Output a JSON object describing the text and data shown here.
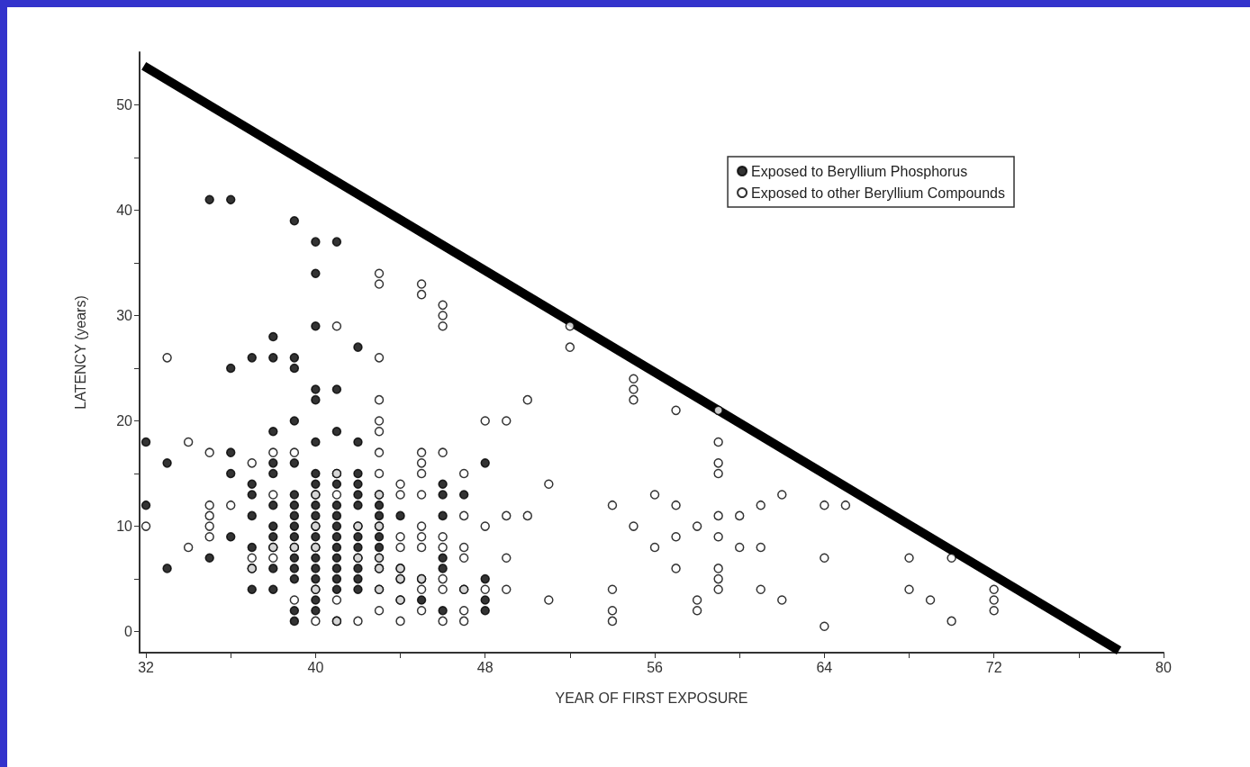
{
  "chart_data": {
    "type": "scatter",
    "xlabel": "YEAR OF FIRST EXPOSURE",
    "ylabel": "LATENCY (years)",
    "xlim": [
      31.7,
      80
    ],
    "ylim": [
      -2,
      55
    ],
    "xticks": [
      32,
      {
        "value": 36,
        "label": null
      },
      40,
      {
        "value": 44,
        "label": null
      },
      48,
      {
        "value": 52,
        "label": null
      },
      56,
      {
        "value": 60,
        "label": null
      },
      64,
      {
        "value": 68,
        "label": null
      },
      72,
      {
        "value": 76,
        "label": null
      },
      80
    ],
    "yticks": [
      0,
      {
        "value": 5,
        "label": null
      },
      10,
      {
        "value": 15,
        "label": null
      },
      20,
      {
        "value": 25,
        "label": null
      },
      30,
      {
        "value": 35,
        "label": null
      },
      40,
      {
        "value": 45,
        "label": null
      },
      50
    ],
    "grid": false,
    "legend": "top right",
    "marker": "circle",
    "series": [
      {
        "name": "Exposed to Beryllium Phosphorus",
        "color": "#000000",
        "x": [
          32,
          32,
          33,
          33,
          35,
          35,
          36,
          36,
          36,
          36,
          36,
          37,
          37,
          37,
          37,
          37,
          37,
          37,
          38,
          38,
          38,
          38,
          38,
          38,
          38,
          38,
          38,
          38,
          38,
          39,
          39,
          39,
          39,
          39,
          39,
          39,
          39,
          39,
          39,
          39,
          39,
          39,
          39,
          39,
          39,
          40,
          40,
          40,
          40,
          40,
          40,
          40,
          40,
          40,
          40,
          40,
          40,
          40,
          40,
          40,
          40,
          40,
          40,
          40,
          40,
          41,
          41,
          41,
          41,
          41,
          41,
          41,
          41,
          41,
          41,
          41,
          41,
          41,
          41,
          41,
          42,
          42,
          42,
          42,
          42,
          42,
          42,
          42,
          42,
          42,
          42,
          42,
          42,
          43,
          43,
          43,
          43,
          43,
          43,
          43,
          43,
          43,
          44,
          44,
          44,
          44,
          45,
          45,
          46,
          46,
          46,
          46,
          46,
          46,
          47,
          47,
          48,
          48,
          48,
          48
        ],
        "values": [
          18,
          12,
          16,
          6,
          41,
          7,
          41,
          25,
          17,
          15,
          9,
          26,
          14,
          13,
          11,
          8,
          6,
          4,
          28,
          26,
          19,
          16,
          15,
          12,
          10,
          9,
          8,
          6,
          4,
          39,
          26,
          25,
          20,
          16,
          13,
          12,
          11,
          10,
          9,
          8,
          7,
          6,
          5,
          2,
          1,
          37,
          34,
          29,
          23,
          22,
          18,
          15,
          14,
          13,
          12,
          11,
          10,
          9,
          8,
          7,
          6,
          5,
          4,
          3,
          2,
          37,
          23,
          19,
          15,
          14,
          12,
          11,
          10,
          9,
          8,
          7,
          6,
          5,
          4,
          1,
          27,
          18,
          15,
          14,
          13,
          12,
          10,
          9,
          8,
          7,
          6,
          5,
          4,
          13,
          12,
          11,
          10,
          9,
          8,
          7,
          6,
          4,
          11,
          6,
          5,
          3,
          5,
          3,
          14,
          13,
          11,
          7,
          6,
          2,
          13,
          4,
          16,
          5,
          3,
          2
        ]
      },
      {
        "name": "Exposed to other Beryllium Compounds",
        "color": "#ffffff",
        "x": [
          32,
          33,
          34,
          34,
          35,
          35,
          35,
          35,
          35,
          36,
          37,
          37,
          37,
          38,
          38,
          38,
          38,
          39,
          39,
          39,
          40,
          40,
          40,
          40,
          40,
          41,
          41,
          41,
          41,
          41,
          42,
          42,
          42,
          43,
          43,
          43,
          43,
          43,
          43,
          43,
          43,
          43,
          43,
          43,
          43,
          43,
          43,
          44,
          44,
          44,
          44,
          44,
          44,
          44,
          44,
          45,
          45,
          45,
          45,
          45,
          45,
          45,
          45,
          45,
          45,
          45,
          45,
          46,
          46,
          46,
          46,
          46,
          46,
          46,
          46,
          46,
          47,
          47,
          47,
          47,
          47,
          47,
          47,
          48,
          48,
          48,
          49,
          49,
          49,
          49,
          50,
          50,
          51,
          51,
          52,
          52,
          54,
          54,
          54,
          54,
          55,
          55,
          55,
          55,
          56,
          56,
          57,
          57,
          57,
          57,
          58,
          58,
          58,
          59,
          59,
          59,
          59,
          59,
          59,
          59,
          59,
          59,
          60,
          60,
          61,
          61,
          61,
          62,
          62,
          64,
          64,
          64,
          65,
          68,
          68,
          69,
          70,
          70,
          72,
          72,
          72
        ],
        "values": [
          10,
          26,
          18,
          8,
          17,
          12,
          11,
          10,
          9,
          12,
          16,
          7,
          6,
          17,
          13,
          8,
          7,
          17,
          8,
          3,
          13,
          10,
          8,
          4,
          1,
          29,
          15,
          13,
          3,
          1,
          10,
          7,
          1,
          34,
          33,
          26,
          22,
          20,
          19,
          17,
          15,
          13,
          10,
          7,
          6,
          4,
          2,
          14,
          13,
          9,
          8,
          6,
          5,
          3,
          1,
          33,
          32,
          17,
          16,
          15,
          13,
          10,
          9,
          8,
          5,
          4,
          2,
          31,
          30,
          29,
          17,
          9,
          8,
          5,
          4,
          1,
          15,
          11,
          8,
          7,
          4,
          2,
          1,
          20,
          10,
          4,
          20,
          11,
          7,
          4,
          22,
          11,
          14,
          3,
          29,
          27,
          12,
          4,
          2,
          1,
          24,
          23,
          22,
          10,
          13,
          8,
          21,
          12,
          9,
          6,
          10,
          3,
          2,
          21,
          18,
          16,
          15,
          11,
          9,
          6,
          5,
          4,
          11,
          8,
          12,
          8,
          4,
          13,
          3,
          12,
          7,
          0.5,
          12,
          7,
          4,
          3,
          7,
          1,
          4,
          3,
          2
        ]
      },
      {
        "type": "line",
        "marker": "none",
        "color": "#000000",
        "x": [
          31.9,
          77.9
        ],
        "values": [
          53.7,
          -1.8
        ]
      }
    ]
  }
}
